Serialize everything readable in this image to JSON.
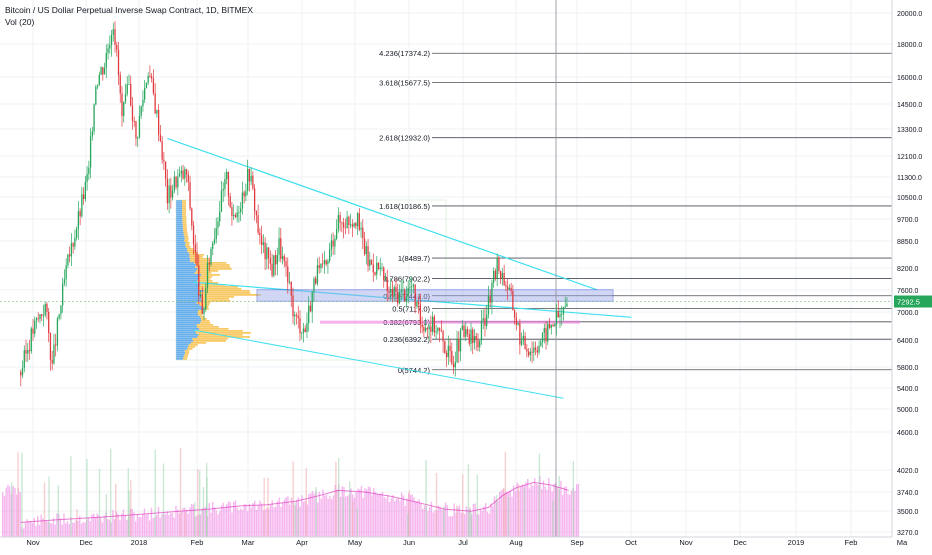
{
  "header": {
    "title": "Bitcoin / US Dollar Perpetual Inverse Swap Contract, 1D, BITMEX",
    "volume_label": "Vol (20)"
  },
  "chart_data": {
    "type": "candlestick",
    "x_ticks": [
      "Nov",
      "Dec",
      "2018",
      "Feb",
      "Mar",
      "Apr",
      "May",
      "Jun",
      "Jul",
      "Aug",
      "Sep",
      "Oct",
      "Nov",
      "Dec",
      "2019",
      "Feb",
      "Ma"
    ],
    "y_ticks": [
      "20000.0",
      "18000.0",
      "16000.0",
      "14500.0",
      "13300.0",
      "12100.0",
      "11300.0",
      "10500.0",
      "9700.0",
      "8850.0",
      "8200.0",
      "7600.0",
      "7000.0",
      "6400.0",
      "5800.0",
      "5400.0",
      "5000.0",
      "4600.0",
      "4020.0",
      "3740.0",
      "3500.0",
      "3270.0"
    ],
    "last_price": "7292.5",
    "fib_levels": [
      {
        "ratio": "4.236",
        "price": 17374.2,
        "label": "4.236(17374.2)"
      },
      {
        "ratio": "3.618",
        "price": 15677.5,
        "label": "3.618(15677.5)"
      },
      {
        "ratio": "2.618",
        "price": 12932.0,
        "label": "2.618(12932.0)"
      },
      {
        "ratio": "1.618",
        "price": 10186.5,
        "label": "1.618(10186.5)"
      },
      {
        "ratio": "1",
        "price": 8489.7,
        "label": "1(8489.7)"
      },
      {
        "ratio": "0.786",
        "price": 7902.2,
        "label": "0.786(7902.2)"
      },
      {
        "ratio": "0.618",
        "price": 7441.0,
        "label": "0.618(7441.0)"
      },
      {
        "ratio": "0.5",
        "price": 7117.0,
        "label": "0.5(7117.0)"
      },
      {
        "ratio": "0.382",
        "price": 6793.0,
        "label": "0.382(6793.0)"
      },
      {
        "ratio": "0.236",
        "price": 6392.2,
        "label": "0.236(6392.2)"
      },
      {
        "ratio": "0",
        "price": 5744.2,
        "label": "0(5744.2)"
      }
    ],
    "price_path": [
      [
        "2017-10-25",
        5700
      ],
      [
        "2017-11-01",
        6600
      ],
      [
        "2017-11-08",
        7200
      ],
      [
        "2017-11-12",
        5800
      ],
      [
        "2017-11-20",
        8100
      ],
      [
        "2017-11-28",
        10000
      ],
      [
        "2017-12-03",
        11500
      ],
      [
        "2017-12-07",
        15800
      ],
      [
        "2017-12-12",
        16800
      ],
      [
        "2017-12-17",
        19500
      ],
      [
        "2017-12-22",
        13800
      ],
      [
        "2017-12-26",
        15500
      ],
      [
        "2017-12-30",
        12800
      ],
      [
        "2018-01-06",
        16500
      ],
      [
        "2018-01-12",
        13500
      ],
      [
        "2018-01-17",
        10500
      ],
      [
        "2018-01-22",
        11200
      ],
      [
        "2018-01-28",
        11400
      ],
      [
        "2018-02-01",
        9000
      ],
      [
        "2018-02-06",
        6800
      ],
      [
        "2018-02-10",
        8500
      ],
      [
        "2018-02-16",
        10200
      ],
      [
        "2018-02-20",
        11200
      ],
      [
        "2018-02-24",
        9600
      ],
      [
        "2018-03-05",
        11500
      ],
      [
        "2018-03-11",
        9000
      ],
      [
        "2018-03-18",
        8200
      ],
      [
        "2018-03-22",
        8900
      ],
      [
        "2018-03-31",
        6900
      ],
      [
        "2018-04-06",
        6600
      ],
      [
        "2018-04-12",
        8000
      ],
      [
        "2018-04-18",
        8200
      ],
      [
        "2018-04-24",
        9600
      ],
      [
        "2018-05-05",
        9800
      ],
      [
        "2018-05-12",
        8400
      ],
      [
        "2018-05-18",
        8200
      ],
      [
        "2018-05-24",
        7500
      ],
      [
        "2018-06-01",
        7500
      ],
      [
        "2018-06-06",
        7700
      ],
      [
        "2018-06-11",
        6800
      ],
      [
        "2018-06-20",
        6700
      ],
      [
        "2018-06-29",
        5900
      ],
      [
        "2018-07-05",
        6500
      ],
      [
        "2018-07-14",
        6300
      ],
      [
        "2018-07-21",
        7400
      ],
      [
        "2018-07-25",
        8300
      ],
      [
        "2018-07-31",
        7700
      ],
      [
        "2018-08-08",
        6300
      ],
      [
        "2018-08-14",
        6200
      ],
      [
        "2018-08-20",
        6400
      ],
      [
        "2018-08-26",
        6800
      ],
      [
        "2018-08-31",
        7000
      ],
      [
        "2018-09-04",
        7292.5
      ]
    ],
    "volume_profile": [
      [
        "2017-10-25",
        3450
      ],
      [
        "2017-11-15",
        3500
      ],
      [
        "2017-12-10",
        3550
      ],
      [
        "2018-01-01",
        3600
      ],
      [
        "2018-01-20",
        3650
      ],
      [
        "2018-02-10",
        3700
      ],
      [
        "2018-02-28",
        3760
      ],
      [
        "2018-03-15",
        3780
      ],
      [
        "2018-04-01",
        3850
      ],
      [
        "2018-04-15",
        3960
      ],
      [
        "2018-04-25",
        4050
      ],
      [
        "2018-05-10",
        4020
      ],
      [
        "2018-05-25",
        3940
      ],
      [
        "2018-06-10",
        3820
      ],
      [
        "2018-06-25",
        3700
      ],
      [
        "2018-07-10",
        3660
      ],
      [
        "2018-07-20",
        3730
      ],
      [
        "2018-07-28",
        3950
      ],
      [
        "2018-08-05",
        4100
      ],
      [
        "2018-08-15",
        4200
      ],
      [
        "2018-08-25",
        4150
      ],
      [
        "2018-09-04",
        4050
      ]
    ]
  }
}
